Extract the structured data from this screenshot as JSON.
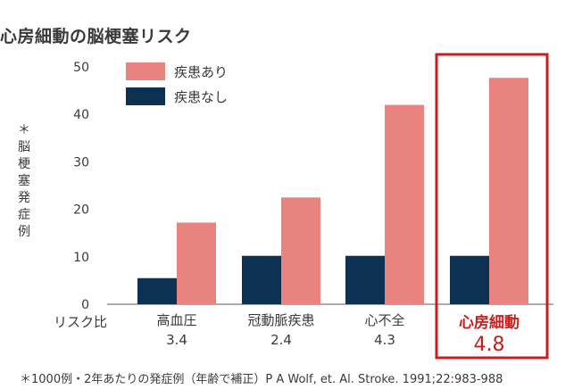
{
  "colors": {
    "with_af": "#e88380",
    "without_af": "#0d3152",
    "highlight": "#c81e1e",
    "axis": "#7a7a7a"
  },
  "chart_data": {
    "type": "bar",
    "title": "心房細動の脳梗塞リスク",
    "ylabel": "＊脳梗塞発症例",
    "ylim": [
      0,
      50
    ],
    "yticks": [
      0,
      10,
      20,
      30,
      40,
      50
    ],
    "categories": [
      "高血圧",
      "冠動脈疾患",
      "心不全",
      "心房細動"
    ],
    "ratio_label": "リスク比",
    "ratios": [
      "3.4",
      "2.4",
      "4.3",
      "4.8"
    ],
    "highlight_category": "心房細動",
    "legend_position": "top-left",
    "series": [
      {
        "name": "疾患あり",
        "values": [
          17.2,
          22.5,
          42.0,
          47.7
        ]
      },
      {
        "name": "疾患なし",
        "values": [
          5.5,
          10.2,
          10.2,
          10.2
        ]
      }
    ]
  },
  "footnote": "＊1000例・2年あたりの発症例（年齢で補正）P A Wolf, et. Al. Stroke. 1991;22:983-988"
}
